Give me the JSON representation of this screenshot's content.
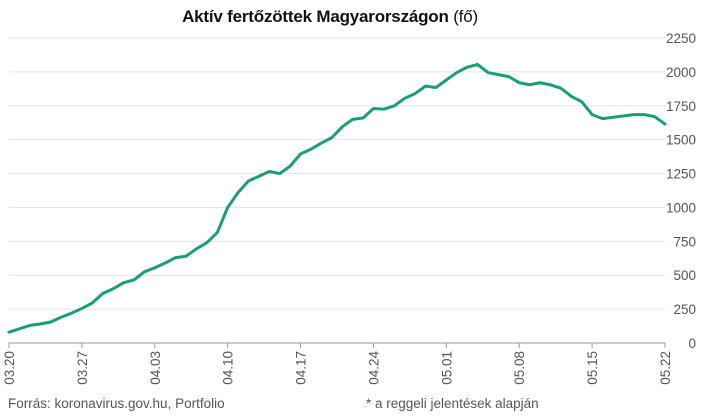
{
  "header": {
    "title": "Aktív fertőzöttek Magyarországon",
    "unit": "(fő)"
  },
  "footer": {
    "source": "Forrás: koronavirus.gov.hu, Portfolio",
    "note": "* a reggeli jelentések alapján"
  },
  "colors": {
    "line": "#1aa070",
    "grid": "#e6e6e6",
    "axis": "#999999",
    "text": "#555555"
  },
  "chart_data": {
    "type": "line",
    "title": "Aktív fertőzöttek Magyarországon (fő)",
    "xlabel": "",
    "ylabel": "",
    "ylim": [
      0,
      2250
    ],
    "yticks": [
      0,
      250,
      500,
      750,
      1000,
      1250,
      1500,
      1750,
      2000,
      2250
    ],
    "y_axis_side": "right",
    "grid": true,
    "xtick_labels": [
      "03.20",
      "03.27",
      "04.03",
      "04.10",
      "04.17",
      "04.24",
      "05.01",
      "05.08",
      "05.15",
      "05.22"
    ],
    "x": [
      "03.20",
      "03.21",
      "03.22",
      "03.23",
      "03.24",
      "03.25",
      "03.26",
      "03.27",
      "03.28",
      "03.29",
      "03.30",
      "03.31",
      "04.01",
      "04.02",
      "04.03",
      "04.04",
      "04.05",
      "04.06",
      "04.07",
      "04.08",
      "04.09",
      "04.10",
      "04.11",
      "04.12",
      "04.13",
      "04.14",
      "04.15",
      "04.16",
      "04.17",
      "04.18",
      "04.19",
      "04.20",
      "04.21",
      "04.22",
      "04.23",
      "04.24",
      "04.25",
      "04.26",
      "04.27",
      "04.28",
      "04.29",
      "04.30",
      "05.01",
      "05.02",
      "05.03",
      "05.04",
      "05.05",
      "05.06",
      "05.07",
      "05.08",
      "05.09",
      "05.10",
      "05.11",
      "05.12",
      "05.13",
      "05.14",
      "05.15",
      "05.16",
      "05.17",
      "05.18",
      "05.19",
      "05.20",
      "05.21",
      "05.22"
    ],
    "series": [
      {
        "values": [
          80,
          105,
          130,
          140,
          155,
          190,
          220,
          255,
          295,
          365,
          400,
          445,
          465,
          525,
          555,
          590,
          630,
          640,
          695,
          740,
          815,
          1000,
          1110,
          1195,
          1230,
          1265,
          1250,
          1305,
          1395,
          1430,
          1475,
          1515,
          1595,
          1650,
          1660,
          1730,
          1725,
          1750,
          1805,
          1840,
          1895,
          1885,
          1940,
          1995,
          2035,
          2055,
          1995,
          1980,
          1965,
          1920,
          1905,
          1920,
          1905,
          1880,
          1820,
          1780,
          1685,
          1655,
          1665,
          1675,
          1685,
          1685,
          1670,
          1615
        ]
      }
    ]
  }
}
